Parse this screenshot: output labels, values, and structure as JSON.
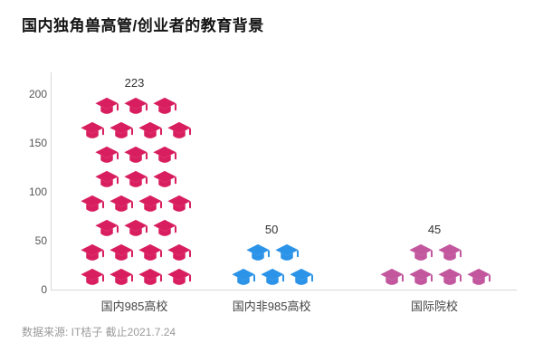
{
  "title": "国内独角兽高管/创业者的教育背景",
  "footer": "数据来源: IT桔子 截止2021.7.24",
  "chart_data": {
    "type": "pictogram",
    "title": "国内独角兽高管/创业者的教育背景",
    "categories": [
      "国内985高校",
      "国内非985高校",
      "国际院校"
    ],
    "values": [
      223,
      50,
      45
    ],
    "colors": [
      "#d81e5f",
      "#2b93e8",
      "#c2579e"
    ],
    "icon": "graduation-cap",
    "icon_rows": [
      [
        3,
        4,
        3,
        3,
        4,
        3,
        4,
        4
      ],
      [
        2,
        3
      ],
      [
        2,
        4
      ]
    ],
    "stack_centers_pct": [
      18,
      47.5,
      82.5
    ],
    "y_ticks": [
      0,
      50,
      100,
      150,
      200
    ],
    "ylim": [
      0,
      222
    ],
    "grid": false,
    "legend": "none",
    "source_note": "数据来源: IT桔子 截止2021.7.24"
  }
}
